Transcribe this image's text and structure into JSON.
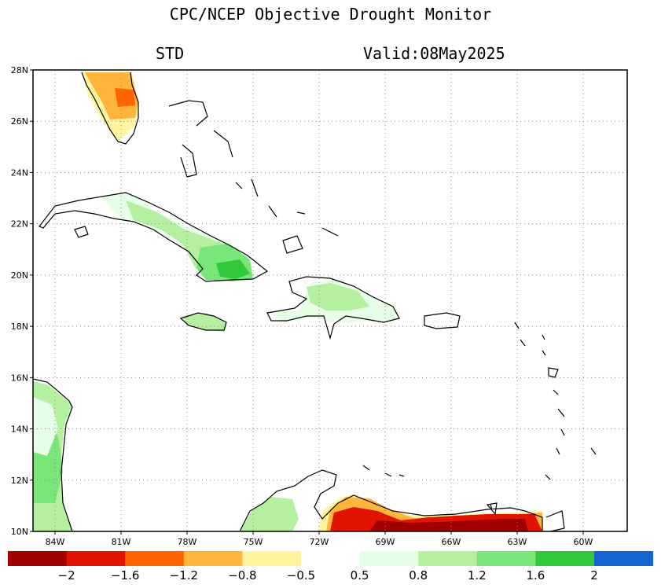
{
  "title": "CPC/NCEP Objective Drought Monitor",
  "subtitle_left": "STD",
  "subtitle_right": "Valid:08May2025",
  "map": {
    "lat_labels": [
      "28N",
      "26N",
      "24N",
      "22N",
      "20N",
      "18N",
      "16N",
      "14N",
      "12N",
      "10N"
    ],
    "lon_labels": [
      "84W",
      "81W",
      "78W",
      "75W",
      "72W",
      "69W",
      "66W",
      "63W",
      "60W"
    ],
    "extent": {
      "lon_min": -85,
      "lon_max": -58,
      "lat_min": 10,
      "lat_max": 28
    },
    "gridlines": true
  },
  "legend": {
    "colors": [
      "#a00000",
      "#e01400",
      "#ff6400",
      "#ffb43c",
      "#fff5a0",
      "#ffffff",
      "#e6ffe6",
      "#b4f0a0",
      "#78e678",
      "#32c83c",
      "#1464d2"
    ],
    "labels": [
      "−2",
      "−1.6",
      "−1.2",
      "−0.8",
      "−0.5",
      "0.5",
      "0.8",
      "1.2",
      "1.6",
      "2"
    ]
  }
}
